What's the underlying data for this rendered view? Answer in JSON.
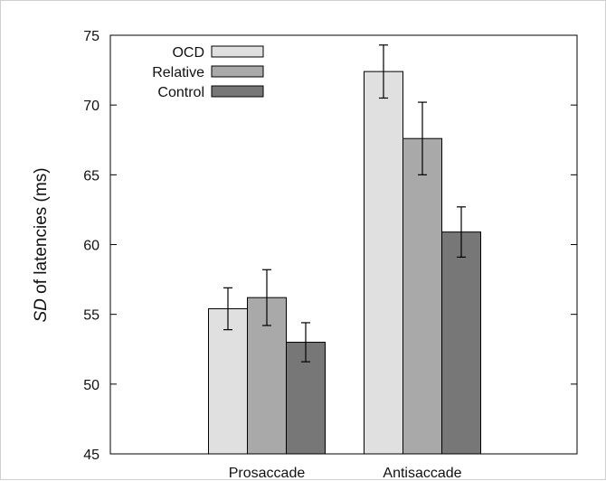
{
  "chart_data": {
    "type": "bar",
    "categories": [
      "Prosaccade",
      "Antisaccade"
    ],
    "series": [
      {
        "name": "OCD",
        "values": [
          55.4,
          72.4
        ],
        "errors": [
          1.5,
          1.9
        ],
        "color": "#e0e0e0"
      },
      {
        "name": "Relative",
        "values": [
          56.2,
          67.6
        ],
        "errors": [
          2.0,
          2.6
        ],
        "color": "#a9a9a9"
      },
      {
        "name": "Control",
        "values": [
          53.0,
          60.9
        ],
        "errors": [
          1.4,
          1.8
        ],
        "color": "#777777"
      }
    ],
    "ylabel_italic": "SD",
    "ylabel_rest": " of latencies (ms)",
    "ylim": [
      45,
      75
    ],
    "yticks": [
      "45",
      "50",
      "55",
      "60",
      "65",
      "70",
      "75"
    ],
    "legend_position": "top-left",
    "grid": false
  }
}
